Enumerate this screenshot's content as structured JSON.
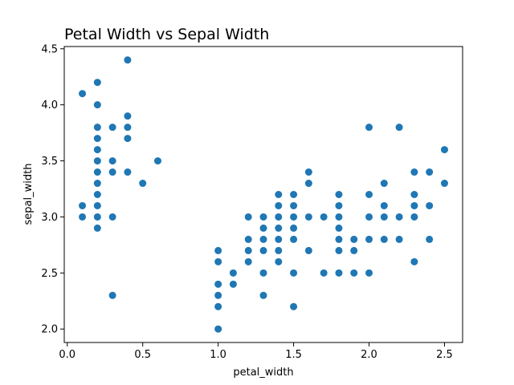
{
  "chart_data": {
    "type": "scatter",
    "title": "Petal Width vs Sepal Width",
    "xlabel": "petal_width",
    "ylabel": "sepal_width",
    "xlim": [
      -0.02,
      2.62
    ],
    "ylim": [
      1.88,
      4.52
    ],
    "xticks": [
      0.0,
      0.5,
      1.0,
      1.5,
      2.0,
      2.5
    ],
    "xtick_labels": [
      "0.0",
      "0.5",
      "1.0",
      "1.5",
      "2.0",
      "2.5"
    ],
    "yticks": [
      2.0,
      2.5,
      3.0,
      3.5,
      4.0,
      4.5
    ],
    "ytick_labels": [
      "2.0",
      "2.5",
      "3.0",
      "3.5",
      "4.0",
      "4.5"
    ],
    "grid": false,
    "marker_color": "#1f77b4",
    "points": [
      [
        0.1,
        4.1
      ],
      [
        0.1,
        3.1
      ],
      [
        0.1,
        3.0
      ],
      [
        0.2,
        4.2
      ],
      [
        0.2,
        4.0
      ],
      [
        0.2,
        3.8
      ],
      [
        0.2,
        3.7
      ],
      [
        0.2,
        3.6
      ],
      [
        0.2,
        3.5
      ],
      [
        0.2,
        3.4
      ],
      [
        0.2,
        3.3
      ],
      [
        0.2,
        3.2
      ],
      [
        0.2,
        3.1
      ],
      [
        0.2,
        3.0
      ],
      [
        0.2,
        2.9
      ],
      [
        0.3,
        3.8
      ],
      [
        0.3,
        3.5
      ],
      [
        0.3,
        3.4
      ],
      [
        0.3,
        3.0
      ],
      [
        0.3,
        2.3
      ],
      [
        0.4,
        4.4
      ],
      [
        0.4,
        3.9
      ],
      [
        0.4,
        3.8
      ],
      [
        0.4,
        3.7
      ],
      [
        0.4,
        3.4
      ],
      [
        0.5,
        3.3
      ],
      [
        0.6,
        3.5
      ],
      [
        1.0,
        2.7
      ],
      [
        1.0,
        2.6
      ],
      [
        1.0,
        2.4
      ],
      [
        1.0,
        2.3
      ],
      [
        1.0,
        2.2
      ],
      [
        1.0,
        2.0
      ],
      [
        1.1,
        2.5
      ],
      [
        1.1,
        2.4
      ],
      [
        1.2,
        3.0
      ],
      [
        1.2,
        2.8
      ],
      [
        1.2,
        2.7
      ],
      [
        1.2,
        2.6
      ],
      [
        1.3,
        3.0
      ],
      [
        1.3,
        2.9
      ],
      [
        1.3,
        2.8
      ],
      [
        1.3,
        2.7
      ],
      [
        1.3,
        2.5
      ],
      [
        1.3,
        2.3
      ],
      [
        1.4,
        3.2
      ],
      [
        1.4,
        3.1
      ],
      [
        1.4,
        3.0
      ],
      [
        1.4,
        2.9
      ],
      [
        1.4,
        2.8
      ],
      [
        1.4,
        2.7
      ],
      [
        1.4,
        2.6
      ],
      [
        1.5,
        3.2
      ],
      [
        1.5,
        3.1
      ],
      [
        1.5,
        3.0
      ],
      [
        1.5,
        2.9
      ],
      [
        1.5,
        2.8
      ],
      [
        1.5,
        2.5
      ],
      [
        1.5,
        2.2
      ],
      [
        1.6,
        3.4
      ],
      [
        1.6,
        3.3
      ],
      [
        1.6,
        3.0
      ],
      [
        1.6,
        2.7
      ],
      [
        1.7,
        3.0
      ],
      [
        1.7,
        2.5
      ],
      [
        1.8,
        3.2
      ],
      [
        1.8,
        3.1
      ],
      [
        1.8,
        3.0
      ],
      [
        1.8,
        2.9
      ],
      [
        1.8,
        2.8
      ],
      [
        1.8,
        2.7
      ],
      [
        1.8,
        2.5
      ],
      [
        1.9,
        2.8
      ],
      [
        1.9,
        2.7
      ],
      [
        1.9,
        2.5
      ],
      [
        2.0,
        3.8
      ],
      [
        2.0,
        3.2
      ],
      [
        2.0,
        3.0
      ],
      [
        2.0,
        2.8
      ],
      [
        2.0,
        2.5
      ],
      [
        2.1,
        3.3
      ],
      [
        2.1,
        3.1
      ],
      [
        2.1,
        3.0
      ],
      [
        2.1,
        2.8
      ],
      [
        2.2,
        3.8
      ],
      [
        2.2,
        3.0
      ],
      [
        2.2,
        2.8
      ],
      [
        2.3,
        3.4
      ],
      [
        2.3,
        3.2
      ],
      [
        2.3,
        3.1
      ],
      [
        2.3,
        3.0
      ],
      [
        2.3,
        2.6
      ],
      [
        2.4,
        3.4
      ],
      [
        2.4,
        3.1
      ],
      [
        2.4,
        2.8
      ],
      [
        2.5,
        3.6
      ],
      [
        2.5,
        3.3
      ]
    ]
  }
}
